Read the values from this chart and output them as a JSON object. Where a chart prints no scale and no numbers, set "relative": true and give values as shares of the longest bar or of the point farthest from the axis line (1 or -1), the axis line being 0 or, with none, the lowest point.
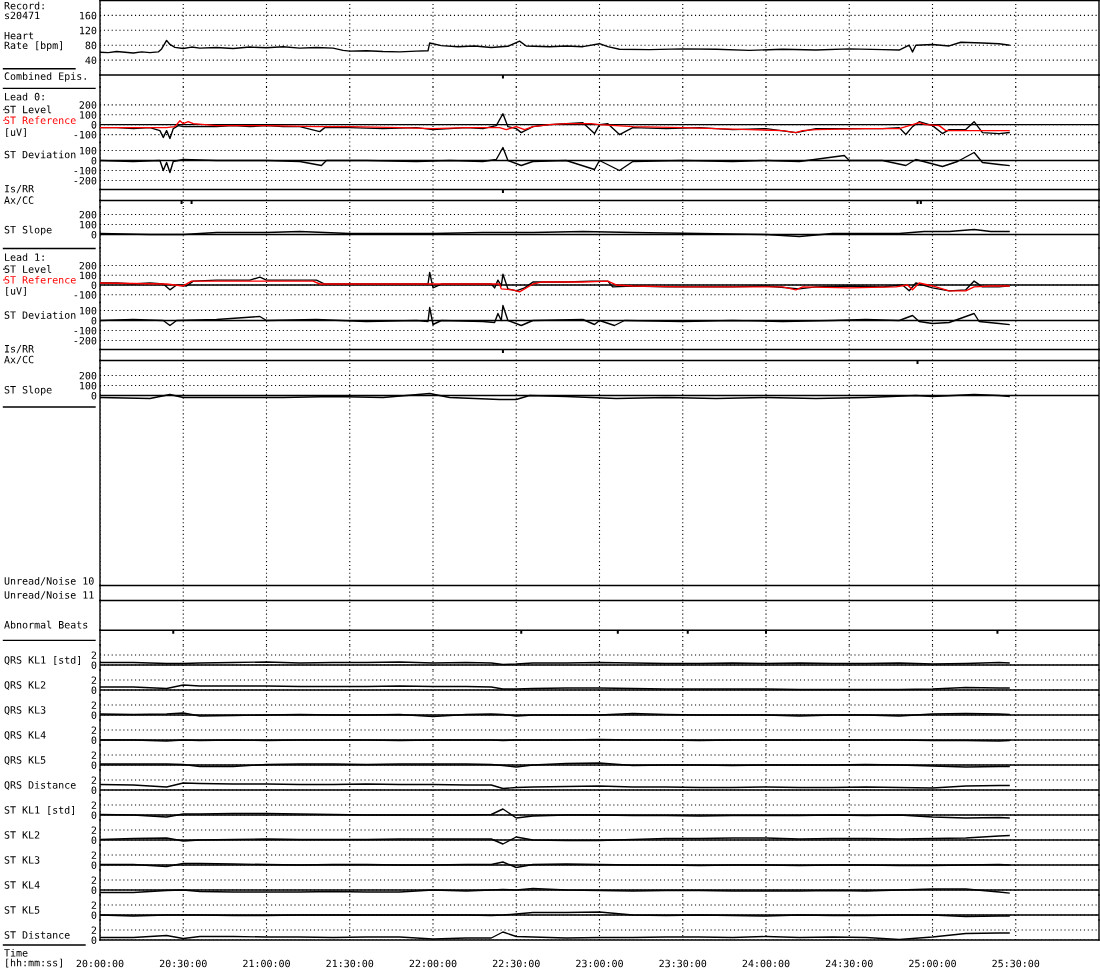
{
  "chart_data": [
    {
      "type": "line",
      "title": "Record:\ns20471",
      "ylabel": "Heart\nRate [bpm]",
      "x": [
        20,
        20.05,
        20.1,
        20.15,
        20.2,
        20.25,
        20.3,
        20.35,
        20.37,
        20.4,
        20.42,
        20.45,
        20.5,
        20.55,
        20.6,
        20.7,
        20.8,
        20.9,
        21,
        21.1,
        21.2,
        21.3,
        21.4,
        21.46,
        21.5,
        21.6,
        21.7,
        21.8,
        21.9,
        21.97,
        21.98,
        22.05,
        22.15,
        22.25,
        22.35,
        22.45,
        22.52,
        22.56,
        22.7,
        22.8,
        22.9,
        23,
        23.05,
        23.12,
        23.3,
        23.5,
        23.7,
        23.9,
        24.1,
        24.3,
        24.5,
        24.7,
        24.8,
        24.86,
        24.88,
        24.9,
        25,
        25.1,
        25.17,
        25.3,
        25.4,
        25.46
      ],
      "values": [
        61,
        60,
        63,
        61,
        59,
        62,
        60,
        62,
        70,
        93,
        82,
        74,
        71,
        75,
        72,
        74,
        71,
        75,
        73,
        76,
        72,
        74,
        72,
        66,
        64,
        65,
        63,
        62,
        64,
        65,
        86,
        79,
        76,
        78,
        74,
        77,
        91,
        78,
        76,
        78,
        76,
        84,
        76,
        69,
        68,
        70,
        69,
        66,
        69,
        67,
        70,
        68,
        67,
        80,
        62,
        80,
        82,
        78,
        88,
        86,
        84,
        80
      ],
      "color": "#000000",
      "xlim": [
        20,
        26
      ],
      "xticks": [
        20,
        20.5,
        21,
        21.5,
        22,
        22.5,
        23,
        23.5,
        24,
        24.5,
        25,
        25.5
      ],
      "ylim": [
        0,
        200
      ],
      "yticks": [
        40,
        80,
        120,
        160
      ],
      "grid": true,
      "tick_labels": "y"
    },
    {
      "type": "bar",
      "ylabel": "Combined Epis.",
      "relative": true,
      "x": [
        22.42
      ],
      "values": [
        -1
      ],
      "color": "#000000",
      "xlim": [
        20,
        26
      ],
      "xticks": [
        20,
        20.5,
        21,
        21.5,
        22,
        22.5,
        23,
        23.5,
        24,
        24.5,
        25,
        25.5
      ],
      "grid": "x",
      "tick_labels": false
    },
    {
      "type": "line",
      "title": "Lead 0:",
      "ylabel": "[uV]",
      "series": [
        {
          "name": "ST Level",
          "color": "#000000",
          "x": [
            20,
            20.1,
            20.2,
            20.3,
            20.36,
            20.38,
            20.4,
            20.42,
            20.44,
            20.47,
            20.5,
            20.6,
            20.7,
            20.8,
            20.9,
            21,
            21.1,
            21.2,
            21.32,
            21.35,
            21.5,
            21.7,
            21.9,
            22,
            22.1,
            22.2,
            22.3,
            22.38,
            22.42,
            22.45,
            22.5,
            22.53,
            22.6,
            22.7,
            22.8,
            22.9,
            22.97,
            23,
            23.05,
            23.12,
            23.2,
            23.4,
            23.6,
            23.8,
            24,
            24.18,
            24.3,
            24.5,
            24.7,
            24.8,
            24.84,
            24.88,
            24.92,
            25,
            25.06,
            25.1,
            25.2,
            25.25,
            25.3,
            25.4,
            25.46
          ],
          "values": [
            -30,
            -30,
            -40,
            -30,
            -60,
            -130,
            -60,
            -140,
            -40,
            -10,
            -20,
            -20,
            -20,
            -10,
            -20,
            -10,
            -20,
            -20,
            -70,
            -30,
            -30,
            -40,
            -30,
            -50,
            -40,
            -30,
            -40,
            -10,
            110,
            -20,
            -40,
            -80,
            -20,
            0,
            10,
            20,
            -90,
            0,
            10,
            -100,
            -30,
            -40,
            -30,
            -50,
            -40,
            -80,
            -40,
            -40,
            -40,
            -30,
            -100,
            -20,
            30,
            -10,
            -90,
            -50,
            -50,
            30,
            -80,
            -90,
            -80
          ]
        },
        {
          "name": "ST Reference",
          "color": "#ff0000",
          "x": [
            20,
            20.4,
            20.45,
            20.48,
            20.5,
            20.53,
            20.56,
            20.7,
            21,
            21.3,
            21.5,
            21.8,
            22,
            22.2,
            22.4,
            22.44,
            22.5,
            22.55,
            22.6,
            22.7,
            22.8,
            22.95,
            23,
            23.2,
            23.5,
            23.9,
            24.1,
            24.18,
            24.22,
            24.3,
            24.6,
            24.8,
            24.86,
            24.92,
            24.96,
            25.04,
            25.08,
            25.46
          ],
          "values": [
            -30,
            -30,
            -20,
            40,
            10,
            30,
            10,
            -10,
            -10,
            -20,
            -20,
            -30,
            -40,
            -30,
            -30,
            -50,
            -20,
            -50,
            -20,
            0,
            10,
            10,
            0,
            -20,
            -30,
            -50,
            -60,
            -80,
            -60,
            -50,
            -40,
            -40,
            -10,
            20,
            0,
            -10,
            -60,
            -60
          ]
        }
      ],
      "legend": "left",
      "xlim": [
        20,
        26
      ],
      "xticks": [
        20,
        20.5,
        21,
        21.5,
        22,
        22.5,
        23,
        23.5,
        24,
        24.5,
        25,
        25.5
      ],
      "ylim": [
        -180,
        380
      ],
      "yticks": [
        -100,
        0,
        100,
        200
      ],
      "grid": true,
      "tick_labels": "y",
      "ref_lines": [
        {
          "axis": "y",
          "value": 0
        }
      ]
    },
    {
      "type": "line",
      "ylabel": "ST Deviation",
      "x": [
        20,
        20.2,
        20.36,
        20.38,
        20.4,
        20.42,
        20.44,
        20.5,
        20.7,
        21,
        21.2,
        21.33,
        21.36,
        21.6,
        21.9,
        22.1,
        22.3,
        22.38,
        22.42,
        22.45,
        22.53,
        22.6,
        22.8,
        22.97,
        23,
        23.12,
        23.2,
        23.5,
        23.8,
        24,
        24.2,
        24.47,
        24.5,
        24.7,
        24.84,
        24.9,
        25.06,
        25.15,
        25.25,
        25.3,
        25.4,
        25.46
      ],
      "values": [
        0,
        -10,
        0,
        -100,
        -20,
        -120,
        -10,
        10,
        0,
        0,
        -10,
        -50,
        0,
        0,
        -10,
        0,
        -10,
        10,
        130,
        0,
        -50,
        -10,
        0,
        -90,
        0,
        -100,
        -10,
        0,
        -10,
        0,
        -10,
        50,
        0,
        0,
        -50,
        10,
        -60,
        -10,
        80,
        -20,
        -40,
        -50
      ],
      "color": "#000000",
      "xlim": [
        20,
        26
      ],
      "xticks": [
        20,
        20.5,
        21,
        21.5,
        22,
        22.5,
        23,
        23.5,
        24,
        24.5,
        25,
        25.5
      ],
      "ylim": [
        -290,
        180
      ],
      "yticks": [
        -200,
        -100,
        0,
        100
      ],
      "grid": true,
      "tick_labels": "y",
      "ref_lines": [
        {
          "axis": "y",
          "value": 0
        }
      ]
    },
    {
      "type": "bar",
      "ylabel": "Is/RR",
      "relative": true,
      "x": [
        22.42
      ],
      "values": [
        -1
      ],
      "color": "#000000",
      "xlim": [
        20,
        26
      ],
      "xticks": [
        20,
        20.5,
        21,
        21.5,
        22,
        22.5,
        23,
        23.5,
        24,
        24.5,
        25,
        25.5
      ],
      "grid": "x",
      "tick_labels": false
    },
    {
      "type": "bar",
      "ylabel": "Ax/CC",
      "relative": true,
      "x": [
        20.49,
        20.55,
        24.91,
        24.93
      ],
      "values": [
        -1,
        -1,
        -1,
        -1
      ],
      "color": "#000000",
      "xlim": [
        20,
        26
      ],
      "xticks": [
        20,
        20.5,
        21,
        21.5,
        22,
        22.5,
        23,
        23.5,
        24,
        24.5,
        25,
        25.5
      ],
      "grid": "x",
      "tick_labels": false
    },
    {
      "type": "line",
      "ylabel": "ST Slope",
      "x": [
        20,
        20.3,
        20.5,
        20.7,
        21,
        21.2,
        21.5,
        21.8,
        22,
        22.3,
        22.6,
        22.9,
        23.2,
        23.6,
        24,
        24.2,
        24.4,
        24.6,
        24.8,
        24.95,
        25.1,
        25.25,
        25.35,
        25.46
      ],
      "values": [
        10,
        0,
        0,
        20,
        20,
        30,
        10,
        10,
        10,
        20,
        20,
        30,
        20,
        10,
        0,
        -20,
        10,
        10,
        10,
        30,
        30,
        50,
        30,
        30
      ],
      "color": "#000000",
      "xlim": [
        20,
        26
      ],
      "xticks": [
        20,
        20.5,
        21,
        21.5,
        22,
        22.5,
        23,
        23.5,
        24,
        24.5,
        25,
        25.5
      ],
      "ylim": [
        -135,
        275
      ],
      "yticks": [
        0,
        100,
        200
      ],
      "grid": true,
      "tick_labels": "y",
      "ref_lines": [
        {
          "axis": "y",
          "value": 0
        }
      ]
    },
    {
      "type": "line",
      "title": "Lead 1:",
      "ylabel": "[uV]",
      "series": [
        {
          "name": "ST Level",
          "color": "#000000",
          "x": [
            20,
            20.1,
            20.2,
            20.3,
            20.38,
            20.42,
            20.46,
            20.52,
            20.56,
            20.7,
            20.9,
            20.96,
            21,
            21.2,
            21.3,
            21.35,
            21.5,
            21.7,
            21.9,
            21.97,
            21.98,
            22,
            22.05,
            22.2,
            22.35,
            22.37,
            22.39,
            22.41,
            22.42,
            22.45,
            22.5,
            22.55,
            22.6,
            22.8,
            22.95,
            23.05,
            23.08,
            23.2,
            23.4,
            23.6,
            23.8,
            24,
            24.2,
            24.3,
            24.5,
            24.7,
            24.82,
            24.86,
            24.9,
            25,
            25.1,
            25.2,
            25.25,
            25.3,
            25.4,
            25.46
          ],
          "values": [
            20,
            20,
            10,
            20,
            10,
            -50,
            0,
            -10,
            40,
            50,
            50,
            80,
            50,
            50,
            50,
            10,
            10,
            10,
            10,
            10,
            130,
            -30,
            10,
            10,
            10,
            -30,
            50,
            -10,
            110,
            -40,
            -60,
            -30,
            30,
            30,
            40,
            40,
            -20,
            -10,
            -20,
            -20,
            -20,
            -10,
            -40,
            -20,
            -10,
            -20,
            0,
            -60,
            20,
            -30,
            -60,
            -50,
            40,
            -20,
            -20,
            -10
          ]
        },
        {
          "name": "ST Reference",
          "color": "#ff0000",
          "x": [
            20,
            20.4,
            20.45,
            20.5,
            20.55,
            21.28,
            21.32,
            22,
            22.4,
            22.41,
            22.48,
            22.52,
            22.6,
            22.65,
            22.9,
            23.05,
            23.1,
            23.2,
            23.5,
            23.8,
            24.1,
            24.18,
            24.22,
            24.5,
            24.78,
            24.85,
            24.88,
            24.92,
            25,
            25.1,
            25.2,
            25.25,
            25.35,
            25.46
          ],
          "values": [
            20,
            10,
            0,
            -10,
            40,
            40,
            10,
            10,
            10,
            -40,
            -50,
            -70,
            10,
            30,
            30,
            40,
            0,
            -10,
            -20,
            -20,
            -20,
            -50,
            -20,
            -30,
            -20,
            0,
            -50,
            20,
            -10,
            -60,
            -60,
            -20,
            -10,
            -10
          ]
        }
      ],
      "legend": "left",
      "xlim": [
        20,
        26
      ],
      "xticks": [
        20,
        20.5,
        21,
        21.5,
        22,
        22.5,
        23,
        23.5,
        24,
        24.5,
        25,
        25.5
      ],
      "ylim": [
        -180,
        380
      ],
      "yticks": [
        -100,
        0,
        100,
        200
      ],
      "grid": true,
      "tick_labels": "y",
      "ref_lines": [
        {
          "axis": "y",
          "value": 0
        }
      ]
    },
    {
      "type": "line",
      "ylabel": "ST Deviation",
      "x": [
        20,
        20.2,
        20.38,
        20.42,
        20.46,
        20.7,
        20.96,
        21,
        21.3,
        21.6,
        21.9,
        21.97,
        21.98,
        22,
        22.05,
        22.3,
        22.37,
        22.39,
        22.41,
        22.42,
        22.45,
        22.53,
        22.6,
        22.9,
        22.97,
        23,
        23.09,
        23.15,
        23.5,
        23.8,
        24.1,
        24.4,
        24.6,
        24.8,
        24.88,
        24.92,
        25,
        25.1,
        25.25,
        25.28,
        25.4,
        25.46
      ],
      "values": [
        0,
        10,
        0,
        -50,
        0,
        10,
        40,
        0,
        10,
        -10,
        0,
        -10,
        130,
        -40,
        0,
        -10,
        -20,
        70,
        0,
        150,
        0,
        -50,
        0,
        10,
        -40,
        0,
        -50,
        0,
        -10,
        0,
        -10,
        0,
        10,
        0,
        50,
        -10,
        -30,
        -20,
        70,
        -10,
        -30,
        -40
      ],
      "color": "#000000",
      "xlim": [
        20,
        26
      ],
      "xticks": [
        20,
        20.5,
        21,
        21.5,
        22,
        22.5,
        23,
        23.5,
        24,
        24.5,
        25,
        25.5
      ],
      "ylim": [
        -290,
        180
      ],
      "yticks": [
        -200,
        -100,
        0,
        100
      ],
      "grid": true,
      "tick_labels": "y",
      "ref_lines": [
        {
          "axis": "y",
          "value": 0
        }
      ]
    },
    {
      "type": "bar",
      "ylabel": "Is/RR",
      "relative": true,
      "x": [
        22.42
      ],
      "values": [
        -1
      ],
      "color": "#000000",
      "xlim": [
        20,
        26
      ],
      "xticks": [
        20,
        20.5,
        21,
        21.5,
        22,
        22.5,
        23,
        23.5,
        24,
        24.5,
        25,
        25.5
      ],
      "grid": "x",
      "tick_labels": false
    },
    {
      "type": "bar",
      "ylabel": "Ax/CC",
      "relative": true,
      "x": [
        24.91
      ],
      "values": [
        -1
      ],
      "color": "#000000",
      "xlim": [
        20,
        26
      ],
      "xticks": [
        20,
        20.5,
        21,
        21.5,
        22,
        22.5,
        23,
        23.5,
        24,
        24.5,
        25,
        25.5
      ],
      "grid": "x",
      "tick_labels": false
    },
    {
      "type": "line",
      "ylabel": "ST Slope",
      "x": [
        20,
        20.3,
        20.42,
        20.5,
        20.8,
        21.1,
        21.4,
        21.7,
        21.98,
        22.1,
        22.4,
        22.5,
        22.58,
        22.8,
        23.1,
        23.4,
        23.7,
        24,
        24.3,
        24.6,
        24.9,
        25,
        25.25,
        25.4,
        25.46
      ],
      "values": [
        -20,
        -30,
        10,
        -20,
        -20,
        -20,
        -10,
        -20,
        20,
        -20,
        -40,
        -40,
        0,
        -10,
        -30,
        -20,
        -30,
        -20,
        -30,
        -20,
        0,
        -10,
        10,
        0,
        -10
      ],
      "color": "#000000",
      "xlim": [
        20,
        26
      ],
      "xticks": [
        20,
        20.5,
        21,
        21.5,
        22,
        22.5,
        23,
        23.5,
        24,
        24.5,
        25,
        25.5
      ],
      "ylim": [
        -1900,
        275
      ],
      "yticks": [
        0,
        100,
        200
      ],
      "grid": true,
      "tick_labels": "y",
      "ref_lines": [
        {
          "axis": "y",
          "value": 0
        }
      ]
    },
    {
      "type": "other",
      "ylabel": "Unread/Noise 10"
    },
    {
      "type": "other",
      "ylabel": "Unread/Noise 11"
    },
    {
      "type": "bar",
      "ylabel": "Abnormal Beats",
      "relative": true,
      "x": [
        20.44,
        22.53,
        23.11,
        23.53,
        24.0,
        25.39
      ],
      "values": [
        -1,
        -1,
        -1,
        -1,
        -1,
        -1
      ],
      "color": "#000000",
      "xlim": [
        20,
        26
      ],
      "xticks": [
        20,
        20.5,
        21,
        21.5,
        22,
        22.5,
        23,
        23.5,
        24,
        24.5,
        25,
        25.5
      ],
      "grid": "x",
      "tick_labels": false
    },
    {
      "type": "line",
      "ylabel": "QRS KL1 [std]",
      "x": [
        20,
        20.2,
        20.4,
        20.5,
        20.6,
        20.8,
        21,
        21.2,
        21.4,
        21.6,
        21.8,
        22,
        22.2,
        22.35,
        22.42,
        22.5,
        22.6,
        22.8,
        23,
        23.2,
        23.4,
        23.6,
        23.8,
        24,
        24.2,
        24.4,
        24.6,
        24.8,
        25,
        25.2,
        25.4,
        25.46
      ],
      "values": [
        0.5,
        0.5,
        0.3,
        0.3,
        0.4,
        0.5,
        0.6,
        0.4,
        0.5,
        0.5,
        0.6,
        0.4,
        0.5,
        0.4,
        0.1,
        0.2,
        0.4,
        0.4,
        0.5,
        0.4,
        0.3,
        0.3,
        0.4,
        0.3,
        0.4,
        0.3,
        0.3,
        0.4,
        0.2,
        0.3,
        0.5,
        0.4
      ],
      "color": "#000000",
      "xlim": [
        20,
        26
      ],
      "xticks": [
        20,
        20.5,
        21,
        21.5,
        22,
        22.5,
        23,
        23.5,
        24,
        24.5,
        25,
        25.5
      ],
      "ylim": [
        -1,
        4
      ],
      "yticks": [
        0,
        2
      ],
      "grid": true,
      "tick_labels": "y",
      "ref_lines": [
        {
          "axis": "y",
          "value": 0
        }
      ]
    },
    {
      "type": "line",
      "ylabel": "QRS KL2",
      "x": [
        20,
        20.2,
        20.4,
        20.5,
        20.6,
        20.8,
        21,
        21.2,
        21.4,
        21.6,
        21.8,
        22,
        22.2,
        22.35,
        22.42,
        22.5,
        22.6,
        22.8,
        23,
        23.2,
        23.4,
        23.6,
        23.8,
        24,
        24.2,
        24.4,
        24.6,
        24.8,
        25,
        25.2,
        25.4,
        25.46
      ],
      "values": [
        0.6,
        0.6,
        0.3,
        1.0,
        0.8,
        0.8,
        0.8,
        0.7,
        0.7,
        0.7,
        0.8,
        0.7,
        0.7,
        0.6,
        0.2,
        0.2,
        0.3,
        0.4,
        0.4,
        0.3,
        0.2,
        0.2,
        0.2,
        0.2,
        0.1,
        0.1,
        0.1,
        0.1,
        0.2,
        0.5,
        0.4,
        0.4
      ],
      "color": "#000000",
      "xlim": [
        20,
        26
      ],
      "xticks": [
        20,
        20.5,
        21,
        21.5,
        22,
        22.5,
        23,
        23.5,
        24,
        24.5,
        25,
        25.5
      ],
      "ylim": [
        -1,
        4
      ],
      "yticks": [
        0,
        2
      ],
      "grid": true,
      "tick_labels": "y",
      "ref_lines": [
        {
          "axis": "y",
          "value": 0
        }
      ]
    },
    {
      "type": "line",
      "ylabel": "QRS KL3",
      "x": [
        20,
        20.2,
        20.4,
        20.5,
        20.6,
        20.8,
        21,
        21.2,
        21.4,
        21.6,
        21.8,
        22,
        22.2,
        22.35,
        22.42,
        22.5,
        22.6,
        22.8,
        23,
        23.2,
        23.4,
        23.6,
        23.8,
        24,
        24.2,
        24.4,
        24.6,
        24.8,
        25,
        25.2,
        25.4,
        25.46
      ],
      "values": [
        0.2,
        0.1,
        0.2,
        0.4,
        -0.2,
        -0.1,
        0.0,
        0.1,
        0.0,
        0.0,
        0.1,
        -0.3,
        0.1,
        0.2,
        0.1,
        -0.2,
        0.0,
        0.0,
        0.0,
        0.3,
        0.1,
        0.0,
        0.0,
        0.0,
        -0.2,
        0.0,
        0.0,
        -0.2,
        0.2,
        0.3,
        0.2,
        0.1
      ],
      "color": "#000000",
      "xlim": [
        20,
        26
      ],
      "xticks": [
        20,
        20.5,
        21,
        21.5,
        22,
        22.5,
        23,
        23.5,
        24,
        24.5,
        25,
        25.5
      ],
      "ylim": [
        -1,
        4
      ],
      "yticks": [
        0,
        2
      ],
      "grid": true,
      "tick_labels": "y",
      "ref_lines": [
        {
          "axis": "y",
          "value": 0
        }
      ]
    },
    {
      "type": "line",
      "ylabel": "QRS KL4",
      "x": [
        20,
        20.2,
        20.4,
        20.5,
        20.6,
        20.8,
        21,
        21.2,
        21.4,
        21.6,
        21.8,
        22,
        22.2,
        22.35,
        22.42,
        22.5,
        22.6,
        22.8,
        23,
        23.2,
        23.4,
        23.6,
        23.8,
        24,
        24.2,
        24.4,
        24.6,
        24.8,
        25,
        25.2,
        25.4,
        25.46
      ],
      "values": [
        0.0,
        0.0,
        -0.2,
        0.0,
        -0.1,
        0.0,
        -0.1,
        0.0,
        0.0,
        0.0,
        -0.1,
        0.0,
        0.0,
        0.0,
        -0.1,
        0.0,
        0.0,
        0.0,
        0.1,
        0.0,
        0.0,
        -0.1,
        0.0,
        0.0,
        0.0,
        0.0,
        0.0,
        0.0,
        -0.1,
        -0.1,
        -0.2,
        -0.1
      ],
      "color": "#000000",
      "xlim": [
        20,
        26
      ],
      "xticks": [
        20,
        20.5,
        21,
        21.5,
        22,
        22.5,
        23,
        23.5,
        24,
        24.5,
        25,
        25.5
      ],
      "ylim": [
        -1,
        4
      ],
      "yticks": [
        0,
        2
      ],
      "grid": true,
      "tick_labels": "y",
      "ref_lines": [
        {
          "axis": "y",
          "value": 0
        }
      ]
    },
    {
      "type": "line",
      "ylabel": "QRS KL5",
      "x": [
        20,
        20.2,
        20.4,
        20.5,
        20.6,
        20.8,
        21,
        21.2,
        21.4,
        21.6,
        21.8,
        22,
        22.2,
        22.35,
        22.42,
        22.5,
        22.6,
        22.8,
        23,
        23.2,
        23.4,
        23.6,
        23.8,
        24,
        24.2,
        24.4,
        24.6,
        24.8,
        25,
        25.2,
        25.4,
        25.46
      ],
      "values": [
        0.2,
        0.2,
        0.2,
        0.1,
        -0.3,
        -0.3,
        0.1,
        0.2,
        0.2,
        0.1,
        0.2,
        0.2,
        0.2,
        0.1,
        -0.1,
        -0.4,
        0.0,
        0.3,
        0.4,
        -0.1,
        0.0,
        0.0,
        -0.1,
        0.0,
        0.0,
        0.0,
        0.1,
        0.0,
        -0.2,
        -0.4,
        -0.3,
        -0.3
      ],
      "color": "#000000",
      "xlim": [
        20,
        26
      ],
      "xticks": [
        20,
        20.5,
        21,
        21.5,
        22,
        22.5,
        23,
        23.5,
        24,
        24.5,
        25,
        25.5
      ],
      "ylim": [
        -1,
        4
      ],
      "yticks": [
        0,
        2
      ],
      "grid": true,
      "tick_labels": "y",
      "ref_lines": [
        {
          "axis": "y",
          "value": 0
        }
      ]
    },
    {
      "type": "line",
      "ylabel": "QRS Distance",
      "x": [
        20,
        20.2,
        20.4,
        20.5,
        20.6,
        20.8,
        21,
        21.2,
        21.4,
        21.6,
        21.8,
        22,
        22.2,
        22.35,
        22.42,
        22.5,
        22.6,
        22.8,
        23,
        23.2,
        23.4,
        23.6,
        23.8,
        24,
        24.2,
        24.4,
        24.6,
        24.8,
        25,
        25.2,
        25.4,
        25.46
      ],
      "values": [
        1.1,
        1.0,
        0.6,
        1.4,
        1.3,
        1.2,
        1.2,
        1.1,
        1.1,
        1.2,
        1.1,
        1.1,
        1.0,
        1.0,
        0.3,
        0.5,
        0.6,
        0.7,
        0.8,
        0.6,
        0.6,
        0.5,
        0.5,
        0.6,
        0.5,
        0.5,
        0.6,
        0.5,
        0.4,
        0.8,
        0.9,
        0.9
      ],
      "color": "#000000",
      "xlim": [
        20,
        26
      ],
      "xticks": [
        20,
        20.5,
        21,
        21.5,
        22,
        22.5,
        23,
        23.5,
        24,
        24.5,
        25,
        25.5
      ],
      "ylim": [
        -1,
        4
      ],
      "yticks": [
        0,
        2
      ],
      "grid": true,
      "tick_labels": "y",
      "ref_lines": [
        {
          "axis": "y",
          "value": 0
        }
      ]
    },
    {
      "type": "line",
      "ylabel": "ST KL1 [std]",
      "x": [
        20,
        20.2,
        20.4,
        20.5,
        20.6,
        20.8,
        21,
        21.2,
        21.4,
        21.6,
        21.8,
        22,
        22.2,
        22.35,
        22.42,
        22.5,
        22.6,
        22.8,
        23,
        23.2,
        23.4,
        23.6,
        23.8,
        24,
        24.2,
        24.4,
        24.6,
        24.8,
        25,
        25.2,
        25.4,
        25.46
      ],
      "values": [
        0.1,
        0.0,
        -0.4,
        0.2,
        0.2,
        0.3,
        0.3,
        0.2,
        0.1,
        0.0,
        0.0,
        0.0,
        0.0,
        0.1,
        1.2,
        -0.6,
        -0.2,
        0.0,
        0.0,
        -0.1,
        -0.1,
        -0.2,
        -0.1,
        -0.1,
        -0.1,
        0.0,
        -0.1,
        0.0,
        -0.4,
        -0.6,
        -0.5,
        -0.6
      ],
      "color": "#000000",
      "xlim": [
        20,
        26
      ],
      "xticks": [
        20,
        20.5,
        21,
        21.5,
        22,
        22.5,
        23,
        23.5,
        24,
        24.5,
        25,
        25.5
      ],
      "ylim": [
        -1,
        4
      ],
      "yticks": [
        0,
        2
      ],
      "grid": true,
      "tick_labels": "y",
      "ref_lines": [
        {
          "axis": "y",
          "value": 0
        }
      ]
    },
    {
      "type": "line",
      "ylabel": "ST KL2",
      "x": [
        20,
        20.2,
        20.4,
        20.5,
        20.6,
        20.8,
        21,
        21.2,
        21.4,
        21.6,
        21.8,
        22,
        22.2,
        22.35,
        22.42,
        22.5,
        22.6,
        22.8,
        23,
        23.2,
        23.4,
        23.6,
        23.8,
        24,
        24.2,
        24.4,
        24.6,
        24.8,
        25,
        25.2,
        25.4,
        25.46
      ],
      "values": [
        0.1,
        0.3,
        0.4,
        -0.2,
        0.0,
        0.1,
        0.2,
        0.1,
        0.1,
        0.1,
        0.2,
        0.2,
        0.2,
        0.2,
        -0.8,
        0.6,
        0.0,
        -0.1,
        -0.1,
        0.1,
        0.3,
        0.3,
        0.4,
        0.4,
        0.2,
        0.3,
        0.3,
        0.2,
        0.3,
        0.4,
        0.8,
        0.9
      ],
      "color": "#000000",
      "xlim": [
        20,
        26
      ],
      "xticks": [
        20,
        20.5,
        21,
        21.5,
        22,
        22.5,
        23,
        23.5,
        24,
        24.5,
        25,
        25.5
      ],
      "ylim": [
        -1,
        4
      ],
      "yticks": [
        0,
        2
      ],
      "grid": true,
      "tick_labels": "y",
      "ref_lines": [
        {
          "axis": "y",
          "value": 0
        }
      ]
    },
    {
      "type": "line",
      "ylabel": "ST KL3",
      "x": [
        20,
        20.2,
        20.4,
        20.5,
        20.6,
        20.8,
        21,
        21.2,
        21.4,
        21.6,
        21.8,
        22,
        22.2,
        22.35,
        22.42,
        22.5,
        22.6,
        22.8,
        23,
        23.2,
        23.4,
        23.6,
        23.8,
        24,
        24.2,
        24.4,
        24.6,
        24.8,
        25,
        25.2,
        25.4,
        25.46
      ],
      "values": [
        0.1,
        0.1,
        -0.3,
        0.3,
        0.3,
        0.2,
        0.1,
        0.0,
        0.1,
        0.1,
        0.0,
        0.0,
        0.1,
        0.1,
        0.6,
        -0.5,
        0.1,
        0.2,
        0.1,
        0.0,
        0.0,
        -0.1,
        0.0,
        0.0,
        -0.1,
        0.0,
        0.0,
        -0.1,
        -0.1,
        0.0,
        0.1,
        0.0
      ],
      "color": "#000000",
      "xlim": [
        20,
        26
      ],
      "xticks": [
        20,
        20.5,
        21,
        21.5,
        22,
        22.5,
        23,
        23.5,
        24,
        24.5,
        25,
        25.5
      ],
      "ylim": [
        -1,
        4
      ],
      "yticks": [
        0,
        2
      ],
      "grid": true,
      "tick_labels": "y",
      "ref_lines": [
        {
          "axis": "y",
          "value": 0
        }
      ]
    },
    {
      "type": "line",
      "ylabel": "ST KL4",
      "x": [
        20,
        20.2,
        20.4,
        20.5,
        20.6,
        20.8,
        21,
        21.2,
        21.4,
        21.6,
        21.8,
        22,
        22.2,
        22.35,
        22.42,
        22.5,
        22.6,
        22.8,
        23,
        23.2,
        23.4,
        23.6,
        23.8,
        24,
        24.2,
        24.4,
        24.6,
        24.8,
        25,
        25.2,
        25.4,
        25.46
      ],
      "values": [
        -0.5,
        -0.5,
        -0.1,
        0.0,
        -0.3,
        -0.4,
        -0.4,
        -0.4,
        -0.3,
        -0.4,
        -0.4,
        0.0,
        -0.2,
        0.0,
        0.1,
        0.0,
        0.3,
        0.0,
        -0.1,
        -0.2,
        -0.1,
        -0.1,
        -0.2,
        -0.2,
        -0.2,
        -0.1,
        -0.2,
        0.0,
        0.2,
        0.2,
        -0.4,
        -0.6
      ],
      "color": "#000000",
      "xlim": [
        20,
        26
      ],
      "xticks": [
        20,
        20.5,
        21,
        21.5,
        22,
        22.5,
        23,
        23.5,
        24,
        24.5,
        25,
        25.5
      ],
      "ylim": [
        -1,
        4
      ],
      "yticks": [
        0,
        2
      ],
      "grid": true,
      "tick_labels": "y",
      "ref_lines": [
        {
          "axis": "y",
          "value": 0
        }
      ]
    },
    {
      "type": "line",
      "ylabel": "ST KL5",
      "x": [
        20,
        20.2,
        20.4,
        20.5,
        20.6,
        20.8,
        21,
        21.2,
        21.4,
        21.6,
        21.8,
        22,
        22.2,
        22.35,
        22.42,
        22.5,
        22.6,
        22.8,
        23,
        23.2,
        23.4,
        23.6,
        23.8,
        24,
        24.2,
        24.4,
        24.6,
        24.8,
        25,
        25.2,
        25.4,
        25.46
      ],
      "values": [
        0.0,
        -0.2,
        0.0,
        0.0,
        0.0,
        -0.1,
        -0.1,
        0.0,
        0.0,
        0.0,
        0.0,
        0.0,
        0.0,
        -0.1,
        0.0,
        0.2,
        0.5,
        0.5,
        0.6,
        0.0,
        -0.1,
        0.0,
        -0.1,
        -0.2,
        0.0,
        -0.1,
        -0.1,
        0.0,
        0.0,
        -0.3,
        -0.2,
        -0.2
      ],
      "color": "#000000",
      "xlim": [
        20,
        26
      ],
      "xticks": [
        20,
        20.5,
        21,
        21.5,
        22,
        22.5,
        23,
        23.5,
        24,
        24.5,
        25,
        25.5
      ],
      "ylim": [
        -1,
        4
      ],
      "yticks": [
        0,
        2
      ],
      "grid": true,
      "tick_labels": "y",
      "ref_lines": [
        {
          "axis": "y",
          "value": 0
        }
      ]
    },
    {
      "type": "line",
      "ylabel": "ST Distance",
      "xlabel": "Time\n[hh:mm:ss]",
      "x": [
        20,
        20.2,
        20.4,
        20.5,
        20.6,
        20.8,
        21,
        21.2,
        21.4,
        21.6,
        21.8,
        22,
        22.2,
        22.35,
        22.42,
        22.5,
        22.6,
        22.8,
        23,
        23.2,
        23.4,
        23.6,
        23.8,
        24,
        24.2,
        24.4,
        24.6,
        24.8,
        25,
        25.2,
        25.4,
        25.46
      ],
      "values": [
        0.5,
        0.5,
        0.9,
        0.3,
        0.7,
        0.7,
        0.6,
        0.6,
        0.5,
        0.6,
        0.6,
        0.2,
        0.4,
        0.4,
        1.6,
        0.7,
        0.6,
        0.4,
        0.5,
        0.5,
        0.6,
        0.6,
        0.5,
        0.7,
        0.5,
        0.6,
        0.5,
        0.1,
        0.6,
        1.3,
        1.4,
        1.4
      ],
      "color": "#000000",
      "xlim": [
        20,
        26
      ],
      "xticks": [
        {
          "value": 20,
          "label": "20:00:00"
        },
        {
          "value": 20.5,
          "label": "20:30:00"
        },
        {
          "value": 21,
          "label": "21:00:00"
        },
        {
          "value": 21.5,
          "label": "21:30:00"
        },
        {
          "value": 22,
          "label": "22:00:00"
        },
        {
          "value": 22.5,
          "label": "22:30:00"
        },
        {
          "value": 23,
          "label": "23:00:00"
        },
        {
          "value": 23.5,
          "label": "23:30:00"
        },
        {
          "value": 24,
          "label": "24:00:00"
        },
        {
          "value": 24.5,
          "label": "24:30:00"
        },
        {
          "value": 25,
          "label": "25:00:00"
        },
        {
          "value": 25.5,
          "label": "25:30:00"
        }
      ],
      "ylim": [
        0,
        4
      ],
      "yticks": [
        0,
        2
      ],
      "grid": true
    }
  ]
}
